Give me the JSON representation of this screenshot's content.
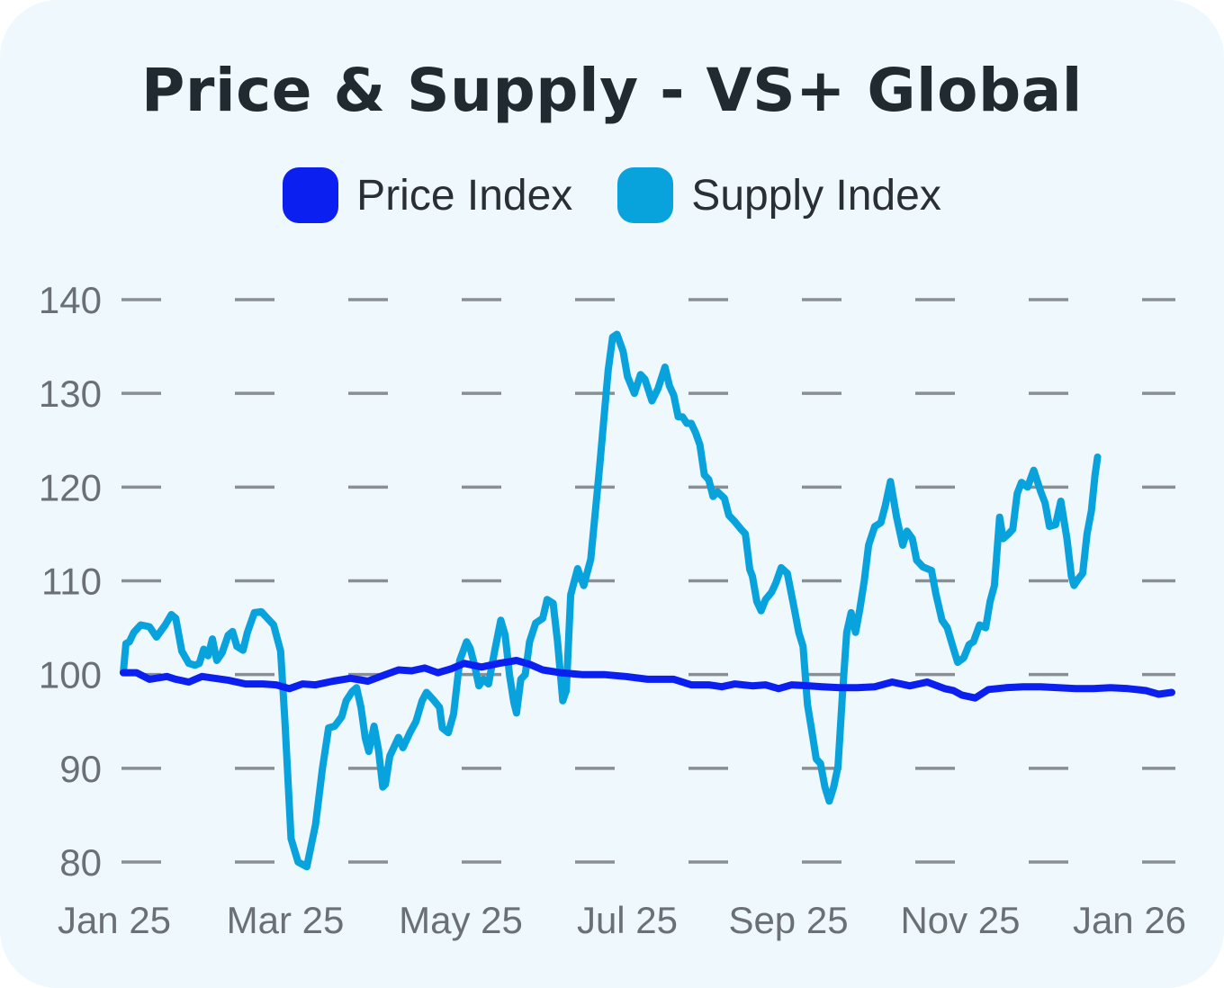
{
  "chart_data": {
    "type": "line",
    "title": "Price & Supply - VS+ Global",
    "xlabel": "",
    "ylabel": "",
    "xlim": [
      "2025-01",
      "2026-01"
    ],
    "ylim": [
      80,
      140
    ],
    "yticks": [
      "80",
      "90",
      "100",
      "110",
      "120",
      "130",
      "140"
    ],
    "xticks": [
      "Jan 25",
      "Mar 25",
      "May 25",
      "Jul 25",
      "Sep 25",
      "Nov 25",
      "Jan 26"
    ],
    "grid": "horizontal dashed",
    "legend_position": "top",
    "series": [
      {
        "name": "Price Index",
        "color": "#0a1ff0",
        "points": [
          [
            0,
            100.2
          ],
          [
            0.15,
            100.2
          ],
          [
            0.3,
            99.5
          ],
          [
            0.5,
            99.8
          ],
          [
            0.6,
            99.5
          ],
          [
            0.75,
            99.2
          ],
          [
            0.9,
            99.8
          ],
          [
            1.2,
            99.4
          ],
          [
            1.4,
            99.0
          ],
          [
            1.6,
            99.0
          ],
          [
            1.75,
            98.9
          ],
          [
            1.9,
            98.5
          ],
          [
            2.05,
            99.0
          ],
          [
            2.2,
            98.9
          ],
          [
            2.4,
            99.3
          ],
          [
            2.6,
            99.6
          ],
          [
            2.8,
            99.3
          ],
          [
            3.0,
            100.0
          ],
          [
            3.15,
            100.5
          ],
          [
            3.3,
            100.4
          ],
          [
            3.45,
            100.7
          ],
          [
            3.6,
            100.2
          ],
          [
            3.75,
            100.6
          ],
          [
            3.9,
            101.2
          ],
          [
            4.1,
            100.8
          ],
          [
            4.3,
            101.2
          ],
          [
            4.5,
            101.5
          ],
          [
            4.65,
            101.1
          ],
          [
            4.8,
            100.5
          ],
          [
            5.0,
            100.2
          ],
          [
            5.25,
            100.0
          ],
          [
            5.5,
            100.0
          ],
          [
            5.75,
            99.8
          ],
          [
            6.0,
            99.5
          ],
          [
            6.3,
            99.5
          ],
          [
            6.5,
            98.9
          ],
          [
            6.7,
            98.9
          ],
          [
            6.85,
            98.7
          ],
          [
            7.0,
            99.0
          ],
          [
            7.2,
            98.8
          ],
          [
            7.35,
            98.9
          ],
          [
            7.5,
            98.5
          ],
          [
            7.65,
            98.9
          ],
          [
            7.85,
            98.8
          ],
          [
            8.0,
            98.7
          ],
          [
            8.2,
            98.6
          ],
          [
            8.4,
            98.6
          ],
          [
            8.6,
            98.7
          ],
          [
            8.8,
            99.2
          ],
          [
            9.0,
            98.8
          ],
          [
            9.2,
            99.2
          ],
          [
            9.4,
            98.5
          ],
          [
            9.5,
            98.3
          ],
          [
            9.6,
            97.8
          ],
          [
            9.75,
            97.5
          ],
          [
            9.9,
            98.4
          ],
          [
            10.1,
            98.6
          ],
          [
            10.3,
            98.7
          ],
          [
            10.5,
            98.7
          ],
          [
            10.7,
            98.6
          ],
          [
            10.9,
            98.5
          ],
          [
            11.1,
            98.5
          ],
          [
            11.3,
            98.6
          ],
          [
            11.5,
            98.5
          ],
          [
            11.7,
            98.3
          ],
          [
            11.85,
            97.9
          ],
          [
            12.0,
            98.1
          ]
        ]
      },
      {
        "name": "Supply Index",
        "color": "#08a2dc",
        "points": [
          [
            0,
            100.2
          ],
          [
            0.03,
            103.3
          ],
          [
            0.07,
            103.5
          ],
          [
            0.12,
            104.5
          ],
          [
            0.2,
            105.3
          ],
          [
            0.3,
            105.1
          ],
          [
            0.38,
            104.0
          ],
          [
            0.48,
            105.3
          ],
          [
            0.55,
            106.4
          ],
          [
            0.6,
            106.0
          ],
          [
            0.67,
            102.5
          ],
          [
            0.75,
            101.2
          ],
          [
            0.82,
            101.0
          ],
          [
            0.87,
            101.2
          ],
          [
            0.92,
            102.7
          ],
          [
            0.97,
            102.0
          ],
          [
            1.02,
            103.8
          ],
          [
            1.07,
            101.5
          ],
          [
            1.13,
            102.3
          ],
          [
            1.2,
            104.2
          ],
          [
            1.25,
            104.6
          ],
          [
            1.3,
            103.0
          ],
          [
            1.37,
            102.6
          ],
          [
            1.42,
            104.5
          ],
          [
            1.5,
            106.6
          ],
          [
            1.58,
            106.7
          ],
          [
            1.65,
            106.0
          ],
          [
            1.72,
            105.3
          ],
          [
            1.8,
            102.5
          ],
          [
            1.85,
            95.0
          ],
          [
            1.92,
            82.5
          ],
          [
            2.0,
            80.0
          ],
          [
            2.1,
            79.5
          ],
          [
            2.2,
            84.0
          ],
          [
            2.28,
            90.0
          ],
          [
            2.35,
            94.3
          ],
          [
            2.42,
            94.5
          ],
          [
            2.5,
            95.5
          ],
          [
            2.55,
            97.2
          ],
          [
            2.62,
            98.2
          ],
          [
            2.67,
            98.6
          ],
          [
            2.72,
            96.5
          ],
          [
            2.77,
            93.2
          ],
          [
            2.81,
            91.8
          ],
          [
            2.87,
            94.5
          ],
          [
            2.92,
            92.0
          ],
          [
            2.97,
            88.0
          ],
          [
            3.0,
            88.3
          ],
          [
            3.05,
            91.3
          ],
          [
            3.15,
            93.3
          ],
          [
            3.2,
            92.2
          ],
          [
            3.28,
            93.8
          ],
          [
            3.35,
            95.0
          ],
          [
            3.42,
            97.2
          ],
          [
            3.47,
            98.1
          ],
          [
            3.55,
            97.3
          ],
          [
            3.62,
            96.5
          ],
          [
            3.65,
            94.3
          ],
          [
            3.72,
            93.8
          ],
          [
            3.78,
            95.8
          ],
          [
            3.85,
            101.5
          ],
          [
            3.93,
            103.5
          ],
          [
            3.97,
            102.8
          ],
          [
            4.02,
            101.0
          ],
          [
            4.07,
            98.8
          ],
          [
            4.12,
            99.5
          ],
          [
            4.18,
            99.0
          ],
          [
            4.25,
            102.5
          ],
          [
            4.32,
            105.8
          ],
          [
            4.37,
            104.2
          ],
          [
            4.42,
            100.0
          ],
          [
            4.47,
            97.0
          ],
          [
            4.5,
            95.9
          ],
          [
            4.55,
            99.5
          ],
          [
            4.6,
            100.0
          ],
          [
            4.65,
            103.5
          ],
          [
            4.72,
            105.5
          ],
          [
            4.8,
            106.0
          ],
          [
            4.85,
            108.0
          ],
          [
            4.92,
            107.6
          ],
          [
            4.97,
            103.5
          ],
          [
            5.03,
            97.2
          ],
          [
            5.07,
            98.3
          ],
          [
            5.12,
            108.5
          ],
          [
            5.2,
            111.3
          ],
          [
            5.27,
            109.5
          ],
          [
            5.35,
            112.3
          ],
          [
            5.45,
            122.0
          ],
          [
            5.55,
            132.5
          ],
          [
            5.6,
            136.0
          ],
          [
            5.65,
            136.3
          ],
          [
            5.72,
            134.5
          ],
          [
            5.77,
            131.8
          ],
          [
            5.85,
            130.0
          ],
          [
            5.92,
            132.0
          ],
          [
            5.97,
            131.5
          ],
          [
            6.05,
            129.2
          ],
          [
            6.12,
            130.5
          ],
          [
            6.2,
            132.8
          ],
          [
            6.25,
            130.8
          ],
          [
            6.3,
            129.8
          ],
          [
            6.35,
            127.5
          ],
          [
            6.4,
            127.5
          ],
          [
            6.45,
            126.8
          ],
          [
            6.5,
            126.8
          ],
          [
            6.55,
            125.8
          ],
          [
            6.6,
            124.5
          ],
          [
            6.65,
            121.3
          ],
          [
            6.7,
            120.8
          ],
          [
            6.75,
            119.0
          ],
          [
            6.8,
            119.5
          ],
          [
            6.88,
            118.8
          ],
          [
            6.93,
            117.0
          ],
          [
            7.0,
            116.3
          ],
          [
            7.07,
            115.5
          ],
          [
            7.12,
            115.0
          ],
          [
            7.17,
            111.2
          ],
          [
            7.2,
            110.5
          ],
          [
            7.25,
            107.8
          ],
          [
            7.3,
            106.8
          ],
          [
            7.35,
            108.0
          ],
          [
            7.42,
            108.8
          ],
          [
            7.47,
            109.8
          ],
          [
            7.53,
            111.4
          ],
          [
            7.6,
            110.8
          ],
          [
            7.68,
            107.0
          ],
          [
            7.73,
            104.5
          ],
          [
            7.78,
            103.0
          ],
          [
            7.83,
            96.8
          ],
          [
            7.88,
            94.0
          ],
          [
            7.93,
            91.0
          ],
          [
            7.98,
            90.5
          ],
          [
            8.03,
            88.0
          ],
          [
            8.08,
            86.5
          ],
          [
            8.13,
            88.0
          ],
          [
            8.18,
            90.2
          ],
          [
            8.23,
            97.8
          ],
          [
            8.28,
            104.5
          ],
          [
            8.33,
            106.6
          ],
          [
            8.38,
            104.5
          ],
          [
            8.43,
            107.0
          ],
          [
            8.48,
            110.0
          ],
          [
            8.53,
            113.8
          ],
          [
            8.6,
            115.8
          ],
          [
            8.67,
            116.2
          ],
          [
            8.72,
            118.0
          ],
          [
            8.78,
            120.6
          ],
          [
            8.85,
            116.8
          ],
          [
            8.92,
            113.8
          ],
          [
            8.97,
            115.3
          ],
          [
            9.03,
            114.5
          ],
          [
            9.08,
            112.2
          ],
          [
            9.15,
            111.5
          ],
          [
            9.25,
            111.1
          ],
          [
            9.3,
            108.6
          ],
          [
            9.37,
            105.8
          ],
          [
            9.43,
            105.0
          ],
          [
            9.5,
            102.8
          ],
          [
            9.55,
            101.3
          ],
          [
            9.62,
            101.8
          ],
          [
            9.68,
            103.2
          ],
          [
            9.73,
            103.5
          ],
          [
            9.8,
            105.3
          ],
          [
            9.87,
            105.0
          ],
          [
            9.92,
            107.8
          ],
          [
            9.97,
            109.5
          ],
          [
            10.03,
            116.8
          ],
          [
            10.07,
            114.5
          ],
          [
            10.13,
            115.0
          ],
          [
            10.18,
            115.5
          ],
          [
            10.23,
            119.3
          ],
          [
            10.28,
            120.5
          ],
          [
            10.35,
            120.0
          ],
          [
            10.42,
            121.8
          ],
          [
            10.5,
            119.5
          ],
          [
            10.55,
            118.3
          ],
          [
            10.6,
            115.8
          ],
          [
            10.67,
            116.0
          ],
          [
            10.73,
            118.5
          ],
          [
            10.8,
            114.5
          ],
          [
            10.85,
            110.5
          ],
          [
            10.88,
            109.5
          ],
          [
            10.93,
            110.2
          ],
          [
            10.98,
            110.8
          ],
          [
            11.03,
            115.0
          ],
          [
            11.08,
            117.5
          ],
          [
            11.12,
            121.2
          ],
          [
            11.15,
            123.2
          ]
        ]
      }
    ]
  },
  "legend": [
    {
      "label": "Price Index",
      "color": "#0a1ff0"
    },
    {
      "label": "Supply Index",
      "color": "#08a2dc"
    }
  ],
  "colors": {
    "background": "#eef8fd",
    "grid": "#8a8f94",
    "axis_text": "#6a7076"
  }
}
